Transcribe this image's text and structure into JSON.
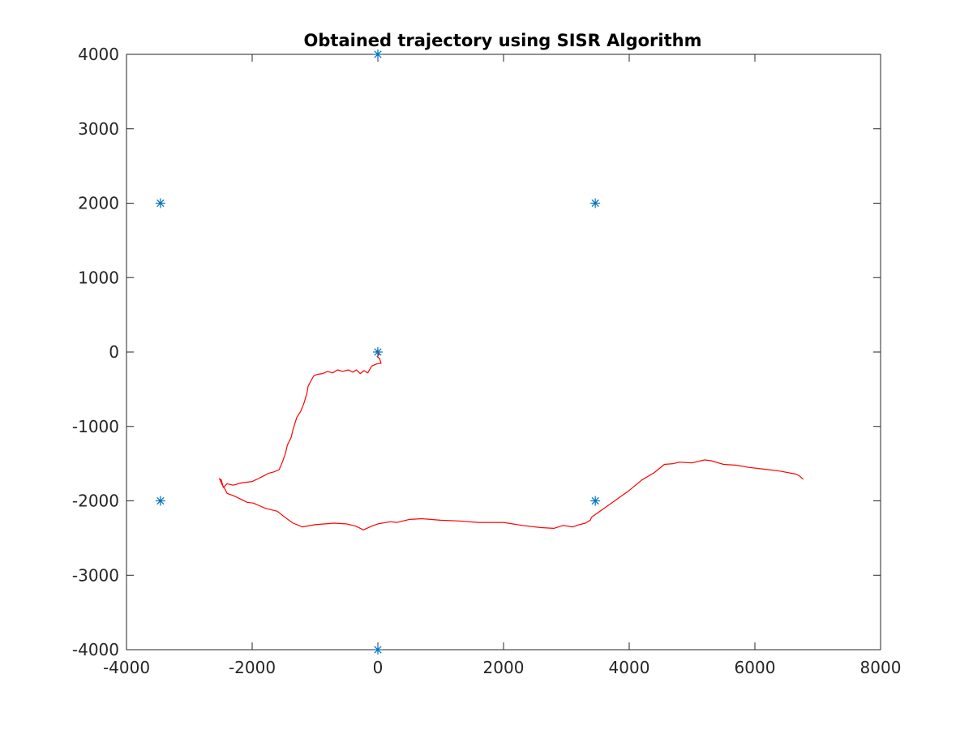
{
  "chart_data": {
    "type": "line",
    "title": "Obtained trajectory using SISR Algorithm",
    "xlabel": "",
    "ylabel": "",
    "xlim": [
      -4000,
      8000
    ],
    "ylim": [
      -4000,
      4000
    ],
    "xticks": [
      -4000,
      -2000,
      0,
      2000,
      4000,
      6000,
      8000
    ],
    "yticks": [
      -4000,
      -3000,
      -2000,
      -1000,
      0,
      1000,
      2000,
      3000,
      4000
    ],
    "grid": false,
    "colors": {
      "trajectory": "#ff0000",
      "markers": "#0072bd",
      "axes": "#262626"
    },
    "series": [
      {
        "type": "scatter",
        "marker": "asterisk",
        "points": [
          [
            0,
            4000
          ],
          [
            -3460,
            2000
          ],
          [
            3460,
            2000
          ],
          [
            0,
            0
          ],
          [
            -3460,
            -2000
          ],
          [
            3460,
            -2000
          ],
          [
            0,
            -4000
          ]
        ]
      },
      {
        "type": "line",
        "points": [
          [
            0,
            30
          ],
          [
            -20,
            10
          ],
          [
            20,
            -30
          ],
          [
            -10,
            -60
          ],
          [
            30,
            -90
          ],
          [
            50,
            -150
          ],
          [
            -20,
            -160
          ],
          [
            -100,
            -190
          ],
          [
            -160,
            -280
          ],
          [
            -220,
            -250
          ],
          [
            -280,
            -290
          ],
          [
            -340,
            -240
          ],
          [
            -400,
            -270
          ],
          [
            -470,
            -240
          ],
          [
            -560,
            -260
          ],
          [
            -640,
            -240
          ],
          [
            -720,
            -280
          ],
          [
            -800,
            -260
          ],
          [
            -880,
            -290
          ],
          [
            -960,
            -300
          ],
          [
            -1020,
            -320
          ],
          [
            -1060,
            -380
          ],
          [
            -1110,
            -460
          ],
          [
            -1130,
            -560
          ],
          [
            -1180,
            -700
          ],
          [
            -1230,
            -800
          ],
          [
            -1290,
            -880
          ],
          [
            -1350,
            -1040
          ],
          [
            -1380,
            -1150
          ],
          [
            -1440,
            -1250
          ],
          [
            -1470,
            -1360
          ],
          [
            -1520,
            -1480
          ],
          [
            -1570,
            -1580
          ],
          [
            -1650,
            -1610
          ],
          [
            -1740,
            -1630
          ],
          [
            -1830,
            -1670
          ],
          [
            -1900,
            -1700
          ],
          [
            -2000,
            -1740
          ],
          [
            -2180,
            -1760
          ],
          [
            -2300,
            -1790
          ],
          [
            -2400,
            -1770
          ],
          [
            -2460,
            -1820
          ],
          [
            -2490,
            -1720
          ],
          [
            -2520,
            -1700
          ],
          [
            -2480,
            -1780
          ],
          [
            -2440,
            -1830
          ],
          [
            -2400,
            -1900
          ],
          [
            -2300,
            -1930
          ],
          [
            -2200,
            -1970
          ],
          [
            -2080,
            -2020
          ],
          [
            -1980,
            -2030
          ],
          [
            -1900,
            -2060
          ],
          [
            -1790,
            -2100
          ],
          [
            -1600,
            -2140
          ],
          [
            -1480,
            -2220
          ],
          [
            -1350,
            -2300
          ],
          [
            -1200,
            -2350
          ],
          [
            -1000,
            -2320
          ],
          [
            -700,
            -2300
          ],
          [
            -500,
            -2310
          ],
          [
            -350,
            -2340
          ],
          [
            -230,
            -2390
          ],
          [
            -100,
            -2340
          ],
          [
            0,
            -2310
          ],
          [
            200,
            -2280
          ],
          [
            300,
            -2290
          ],
          [
            500,
            -2250
          ],
          [
            700,
            -2240
          ],
          [
            1000,
            -2260
          ],
          [
            1300,
            -2270
          ],
          [
            1600,
            -2290
          ],
          [
            2000,
            -2290
          ],
          [
            2300,
            -2330
          ],
          [
            2600,
            -2360
          ],
          [
            2800,
            -2370
          ],
          [
            2950,
            -2330
          ],
          [
            3100,
            -2350
          ],
          [
            3200,
            -2320
          ],
          [
            3300,
            -2300
          ],
          [
            3380,
            -2260
          ],
          [
            3400,
            -2220
          ],
          [
            3600,
            -2100
          ],
          [
            3800,
            -1980
          ],
          [
            4000,
            -1860
          ],
          [
            4200,
            -1720
          ],
          [
            4400,
            -1620
          ],
          [
            4560,
            -1510
          ],
          [
            4700,
            -1500
          ],
          [
            4800,
            -1480
          ],
          [
            5000,
            -1490
          ],
          [
            5200,
            -1450
          ],
          [
            5300,
            -1460
          ],
          [
            5500,
            -1510
          ],
          [
            5700,
            -1520
          ],
          [
            5900,
            -1550
          ],
          [
            6100,
            -1570
          ],
          [
            6400,
            -1600
          ],
          [
            6650,
            -1640
          ],
          [
            6700,
            -1660
          ],
          [
            6770,
            -1710
          ]
        ]
      }
    ]
  }
}
